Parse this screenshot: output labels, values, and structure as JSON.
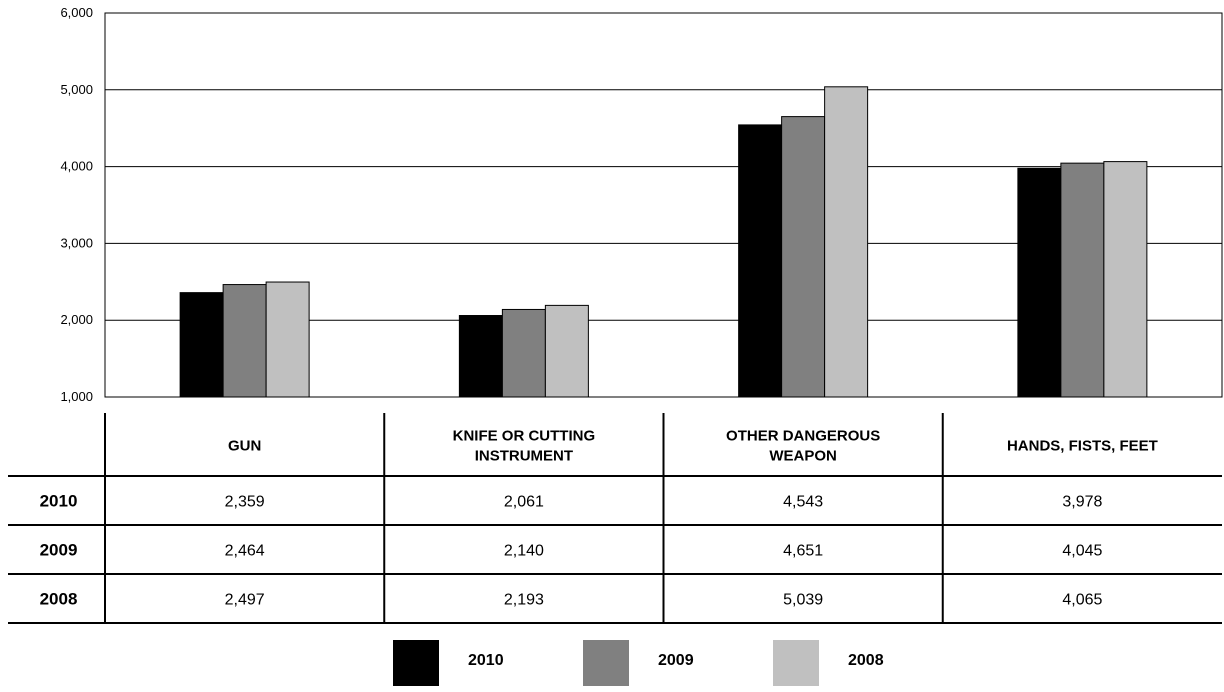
{
  "chart_data": {
    "type": "bar",
    "categories": [
      [
        "GUN"
      ],
      [
        "KNIFE OR CUTTING",
        "INSTRUMENT"
      ],
      [
        "OTHER DANGEROUS",
        "WEAPON"
      ],
      [
        "HANDS, FISTS, FEET"
      ]
    ],
    "series": [
      {
        "name": "2010",
        "values": [
          2359,
          2061,
          4543,
          3978
        ],
        "values_text": [
          "2,359",
          "2,061",
          "4,543",
          "3,978"
        ],
        "color": "#000000"
      },
      {
        "name": "2009",
        "values": [
          2464,
          2140,
          4651,
          4045
        ],
        "values_text": [
          "2,464",
          "2,140",
          "4,651",
          "4,045"
        ],
        "color": "#808080"
      },
      {
        "name": "2008",
        "values": [
          2497,
          2193,
          5039,
          4065
        ],
        "values_text": [
          "2,497",
          "2,193",
          "5,039",
          "4,065"
        ],
        "color": "#c0c0c0"
      }
    ],
    "y_ticks": [
      "1,000",
      "2,000",
      "3,000",
      "4,000",
      "5,000",
      "6,000"
    ],
    "ylim": [
      1000,
      6000
    ],
    "grid": true,
    "legend_position": "bottom-center",
    "data_table": true
  }
}
